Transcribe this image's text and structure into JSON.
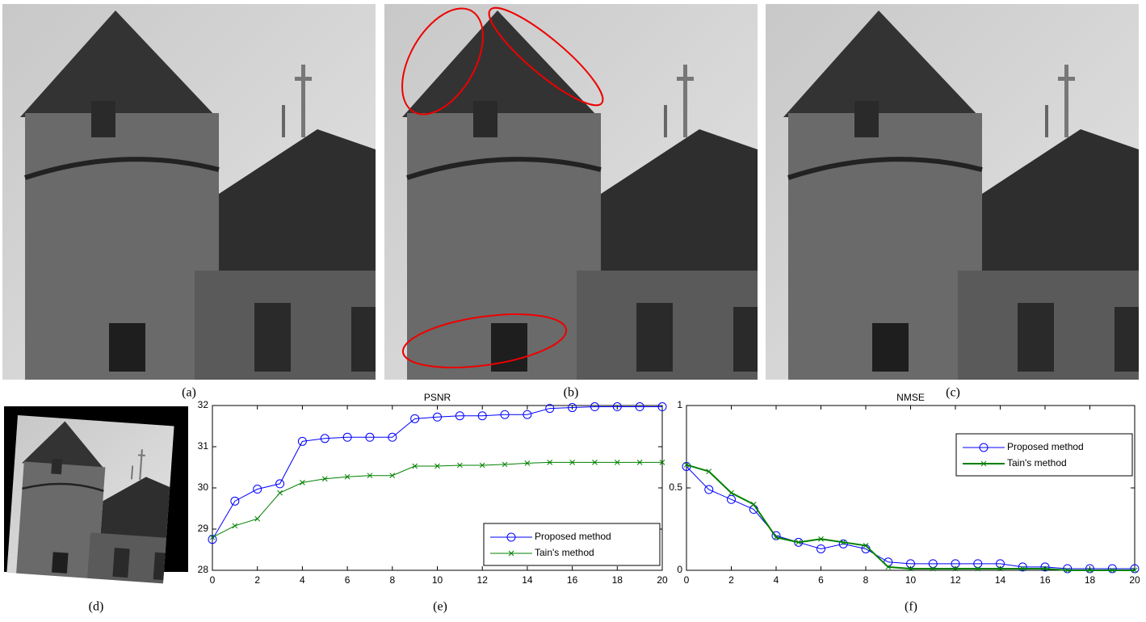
{
  "captions": [
    "(a)",
    "(b)",
    "(c)",
    "(d)",
    "(e)",
    "(f)"
  ],
  "chart_data": [
    {
      "type": "line",
      "title": "PSNR",
      "x": [
        0,
        1,
        2,
        3,
        4,
        5,
        6,
        7,
        8,
        9,
        10,
        11,
        12,
        13,
        14,
        15,
        16,
        17,
        18,
        19,
        20
      ],
      "xlim": [
        0,
        20
      ],
      "xticks": [
        0,
        2,
        4,
        6,
        8,
        10,
        12,
        14,
        16,
        18,
        20
      ],
      "ylim": [
        28,
        32
      ],
      "yticks": [
        28,
        29,
        30,
        31,
        32
      ],
      "legend": "lower right",
      "series": [
        {
          "name": "Proposed method",
          "color": "#0000ff",
          "marker": "o",
          "width": 1,
          "values": [
            28.75,
            29.68,
            29.97,
            30.1,
            31.13,
            31.2,
            31.23,
            31.23,
            31.23,
            31.68,
            31.72,
            31.75,
            31.75,
            31.78,
            31.78,
            31.93,
            31.95,
            31.97,
            31.97,
            31.97,
            31.97
          ]
        },
        {
          "name": "Tain's method",
          "color": "#008000",
          "marker": "x",
          "width": 1,
          "values": [
            28.8,
            29.08,
            29.25,
            29.88,
            30.13,
            30.22,
            30.27,
            30.3,
            30.3,
            30.53,
            30.53,
            30.55,
            30.55,
            30.57,
            30.6,
            30.62,
            30.62,
            30.62,
            30.62,
            30.62,
            30.62
          ]
        }
      ]
    },
    {
      "type": "line",
      "title": "NMSE",
      "x": [
        0,
        1,
        2,
        3,
        4,
        5,
        6,
        7,
        8,
        9,
        10,
        11,
        12,
        13,
        14,
        15,
        16,
        17,
        18,
        19,
        20
      ],
      "xlim": [
        0,
        20
      ],
      "xticks": [
        0,
        2,
        4,
        6,
        8,
        10,
        12,
        14,
        16,
        18,
        20
      ],
      "ylim": [
        0,
        1
      ],
      "yticks": [
        0,
        0.5,
        1
      ],
      "legend": "upper right",
      "series": [
        {
          "name": "Proposed method",
          "color": "#0000ff",
          "marker": "o",
          "width": 1,
          "values": [
            0.63,
            0.49,
            0.43,
            0.37,
            0.21,
            0.17,
            0.13,
            0.16,
            0.13,
            0.05,
            0.04,
            0.04,
            0.04,
            0.04,
            0.04,
            0.02,
            0.02,
            0.01,
            0.01,
            0.01,
            0.01
          ]
        },
        {
          "name": "Tain's method",
          "color": "#008000",
          "marker": "x",
          "width": 2,
          "values": [
            0.64,
            0.6,
            0.47,
            0.4,
            0.2,
            0.17,
            0.19,
            0.17,
            0.15,
            0.02,
            0.01,
            0.01,
            0.01,
            0.01,
            0.01,
            0.01,
            0.01,
            0,
            0,
            0,
            0
          ]
        }
      ]
    }
  ]
}
